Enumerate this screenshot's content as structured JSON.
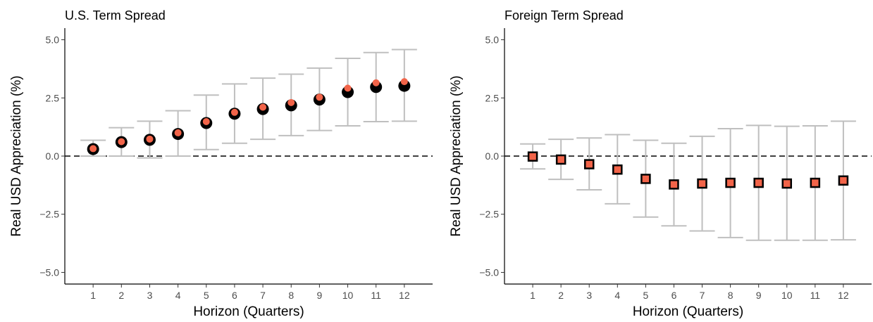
{
  "chart_data": [
    {
      "type": "scatter",
      "title": "U.S. Term Spread",
      "xlabel": "Horizon (Quarters)",
      "ylabel": "Real USD Appreciation (%)",
      "x": [
        1,
        2,
        3,
        4,
        5,
        6,
        7,
        8,
        9,
        10,
        11,
        12
      ],
      "xlim": [
        0,
        13
      ],
      "ylim": [
        -5.5,
        5.5
      ],
      "y_ticks": [
        "-5.0",
        "-2.5",
        "0.0",
        "2.5",
        "5.0"
      ],
      "x_ticks": [
        "1",
        "2",
        "3",
        "4",
        "5",
        "6",
        "7",
        "8",
        "9",
        "10",
        "11",
        "12"
      ],
      "reference_line_y": 0,
      "marker": "circle",
      "series": [
        {
          "values": [
            0.3,
            0.6,
            0.7,
            0.95,
            1.42,
            1.82,
            2.02,
            2.18,
            2.43,
            2.75,
            2.97,
            3.02
          ],
          "color": "#000000"
        },
        {
          "values": [
            0.32,
            0.62,
            0.73,
            1.0,
            1.48,
            1.88,
            2.1,
            2.3,
            2.53,
            2.92,
            3.15,
            3.2
          ],
          "color": "#f26449"
        }
      ],
      "error_bars": {
        "low": [
          0.0,
          0.0,
          -0.08,
          0.0,
          0.28,
          0.55,
          0.72,
          0.88,
          1.1,
          1.3,
          1.48,
          1.5
        ],
        "high": [
          0.68,
          1.22,
          1.5,
          1.95,
          2.62,
          3.1,
          3.35,
          3.52,
          3.78,
          4.2,
          4.45,
          4.58
        ],
        "color": "#bfbfbf"
      }
    },
    {
      "type": "scatter",
      "title": "Foreign Term Spread",
      "xlabel": "Horizon (Quarters)",
      "ylabel": "Real USD Appreciation (%)",
      "x": [
        1,
        2,
        3,
        4,
        5,
        6,
        7,
        8,
        9,
        10,
        11,
        12
      ],
      "xlim": [
        0,
        13
      ],
      "ylim": [
        -5.5,
        5.5
      ],
      "y_ticks": [
        "-5.0",
        "-2.5",
        "0.0",
        "2.5",
        "5.0"
      ],
      "x_ticks": [
        "1",
        "2",
        "3",
        "4",
        "5",
        "6",
        "7",
        "8",
        "9",
        "10",
        "11",
        "12"
      ],
      "reference_line_y": 0,
      "marker": "square",
      "series": [
        {
          "values": [
            -0.02,
            -0.15,
            -0.35,
            -0.58,
            -0.98,
            -1.22,
            -1.18,
            -1.15,
            -1.15,
            -1.18,
            -1.15,
            -1.05
          ],
          "color": "#f26449"
        }
      ],
      "error_bars": {
        "low": [
          -0.55,
          -1.0,
          -1.45,
          -2.05,
          -2.62,
          -3.0,
          -3.22,
          -3.5,
          -3.62,
          -3.62,
          -3.62,
          -3.6
        ],
        "high": [
          0.52,
          0.72,
          0.78,
          0.92,
          0.68,
          0.55,
          0.85,
          1.18,
          1.32,
          1.28,
          1.3,
          1.5
        ],
        "color": "#bfbfbf"
      }
    }
  ]
}
